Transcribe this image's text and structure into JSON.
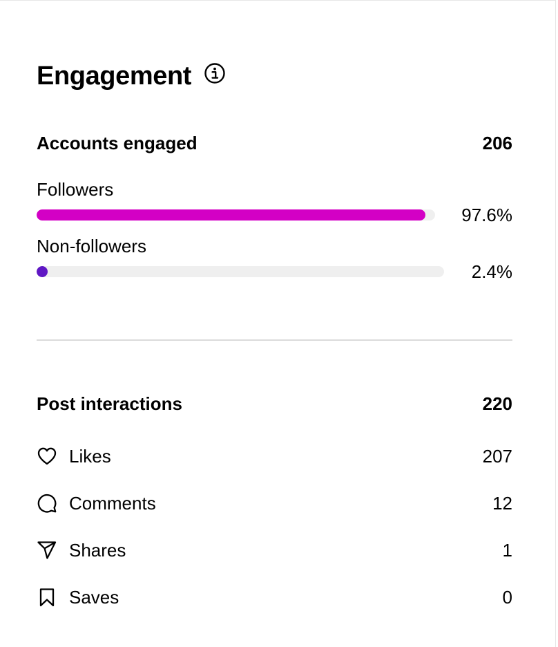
{
  "engagement": {
    "title": "Engagement",
    "info_icon": "info-icon"
  },
  "accounts_engaged": {
    "label": "Accounts engaged",
    "value": "206",
    "bars": [
      {
        "label": "Followers",
        "percent_label": "97.6%",
        "fraction": 0.976,
        "color": "#d300c5"
      },
      {
        "label": "Non-followers",
        "percent_label": "2.4%",
        "fraction": 0.024,
        "color": "#5f17c4"
      }
    ]
  },
  "post_interactions": {
    "label": "Post interactions",
    "value": "220",
    "items": [
      {
        "icon": "heart-icon",
        "label": "Likes",
        "value": "207"
      },
      {
        "icon": "comment-icon",
        "label": "Comments",
        "value": "12"
      },
      {
        "icon": "paper-plane-icon",
        "label": "Shares",
        "value": "1"
      },
      {
        "icon": "bookmark-icon",
        "label": "Saves",
        "value": "0"
      }
    ]
  }
}
